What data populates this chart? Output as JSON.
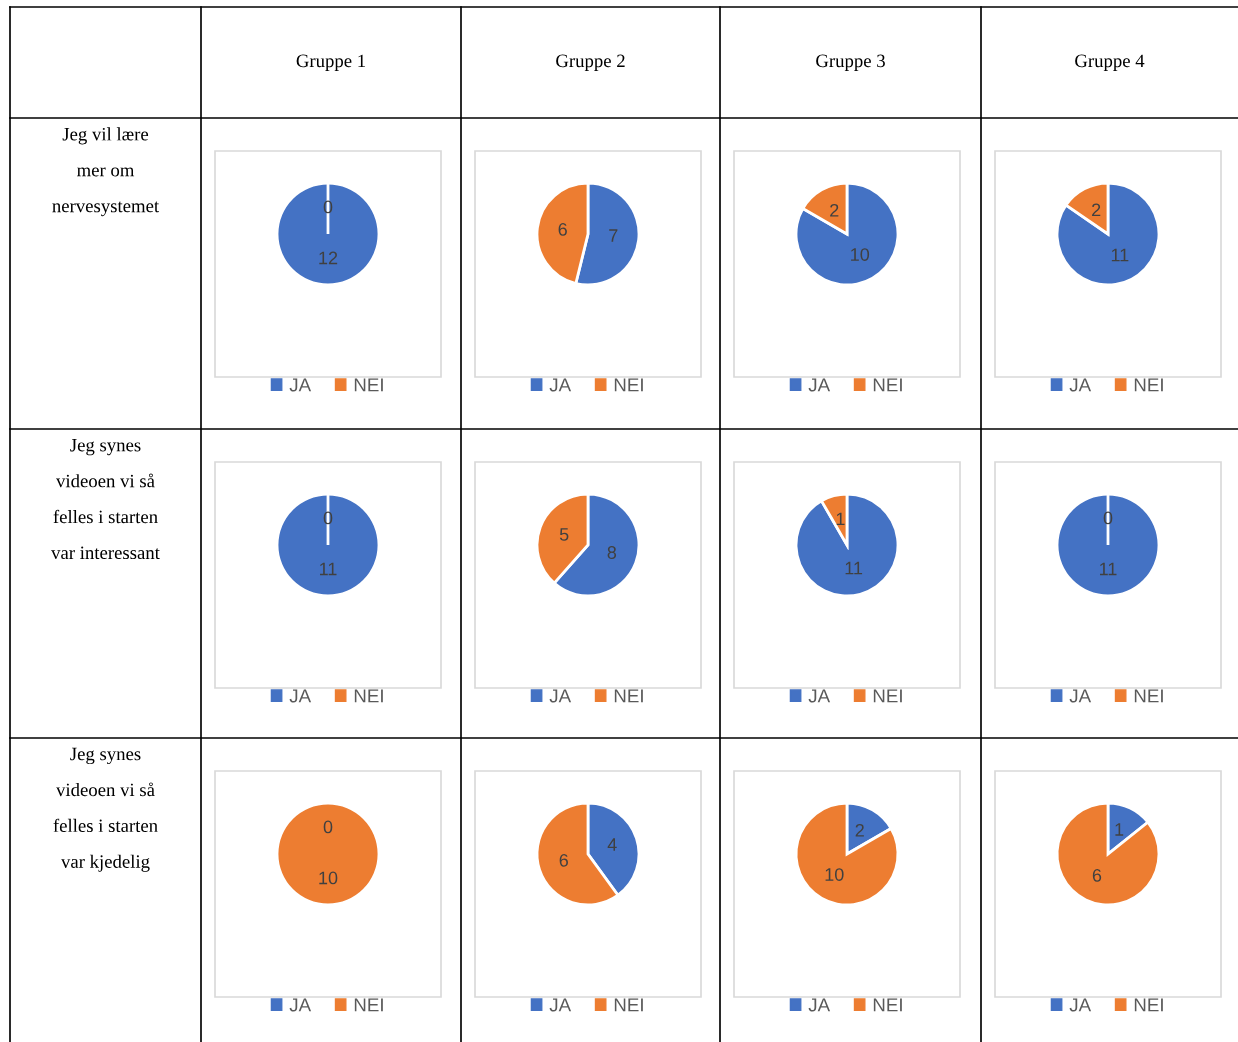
{
  "chart_data": [
    {
      "type": "other",
      "title": "Gruppe 1"
    },
    {
      "type": "other",
      "title": "Gruppe 2"
    },
    {
      "type": "other",
      "title": "Gruppe 3"
    },
    {
      "type": "other",
      "title": "Gruppe 4"
    },
    {
      "type": "other",
      "title": "Jeg vil lære\nmer om\nnervesystemet"
    },
    {
      "type": "pie",
      "categories": [
        "JA",
        "NEI"
      ],
      "values": [
        12,
        0
      ],
      "value_labels": [
        "12",
        "0"
      ],
      "colors": [
        "#4472c4",
        "#ed7d31"
      ],
      "legend": "bottom"
    },
    {
      "type": "pie",
      "categories": [
        "JA",
        "NEI"
      ],
      "values": [
        7,
        6
      ],
      "value_labels": [
        "7",
        "6"
      ],
      "colors": [
        "#4472c4",
        "#ed7d31"
      ],
      "legend": "bottom"
    },
    {
      "type": "pie",
      "categories": [
        "JA",
        "NEI"
      ],
      "values": [
        10,
        2
      ],
      "value_labels": [
        "10",
        "2"
      ],
      "colors": [
        "#4472c4",
        "#ed7d31"
      ],
      "legend": "bottom"
    },
    {
      "type": "pie",
      "categories": [
        "JA",
        "NEI"
      ],
      "values": [
        11,
        2
      ],
      "value_labels": [
        "11",
        "2"
      ],
      "colors": [
        "#4472c4",
        "#ed7d31"
      ],
      "legend": "bottom"
    },
    {
      "type": "other",
      "title": "Jeg synes\nvideoen vi så\nfelles i starten\nvar interessant"
    },
    {
      "type": "pie",
      "categories": [
        "JA",
        "NEI"
      ],
      "values": [
        11,
        0
      ],
      "value_labels": [
        "11",
        "0"
      ],
      "colors": [
        "#4472c4",
        "#ed7d31"
      ],
      "legend": "bottom"
    },
    {
      "type": "pie",
      "categories": [
        "JA",
        "NEI"
      ],
      "values": [
        8,
        5
      ],
      "value_labels": [
        "8",
        "5"
      ],
      "colors": [
        "#4472c4",
        "#ed7d31"
      ],
      "legend": "bottom"
    },
    {
      "type": "pie",
      "categories": [
        "JA",
        "NEI"
      ],
      "values": [
        11,
        1
      ],
      "value_labels": [
        "11",
        "1"
      ],
      "colors": [
        "#4472c4",
        "#ed7d31"
      ],
      "legend": "bottom"
    },
    {
      "type": "pie",
      "categories": [
        "JA",
        "NEI"
      ],
      "values": [
        11,
        0
      ],
      "value_labels": [
        "11",
        "0"
      ],
      "colors": [
        "#4472c4",
        "#ed7d31"
      ],
      "legend": "bottom"
    },
    {
      "type": "other",
      "title": "Jeg synes\nvideoen vi så\nfelles i starten\nvar kjedelig"
    },
    {
      "type": "pie",
      "categories": [
        "JA",
        "NEI"
      ],
      "values": [
        0,
        10
      ],
      "value_labels": [
        "0",
        "10"
      ],
      "colors": [
        "#4472c4",
        "#ed7d31"
      ],
      "legend": "bottom"
    },
    {
      "type": "pie",
      "categories": [
        "JA",
        "NEI"
      ],
      "values": [
        4,
        6
      ],
      "value_labels": [
        "4",
        "6"
      ],
      "colors": [
        "#4472c4",
        "#ed7d31"
      ],
      "legend": "bottom"
    },
    {
      "type": "pie",
      "categories": [
        "JA",
        "NEI"
      ],
      "values": [
        2,
        10
      ],
      "value_labels": [
        "2",
        "10"
      ],
      "colors": [
        "#4472c4",
        "#ed7d31"
      ],
      "legend": "bottom"
    },
    {
      "type": "pie",
      "categories": [
        "JA",
        "NEI"
      ],
      "values": [
        1,
        6
      ],
      "value_labels": [
        "1",
        "6"
      ],
      "colors": [
        "#4472c4",
        "#ed7d31"
      ],
      "legend": "bottom"
    }
  ]
}
